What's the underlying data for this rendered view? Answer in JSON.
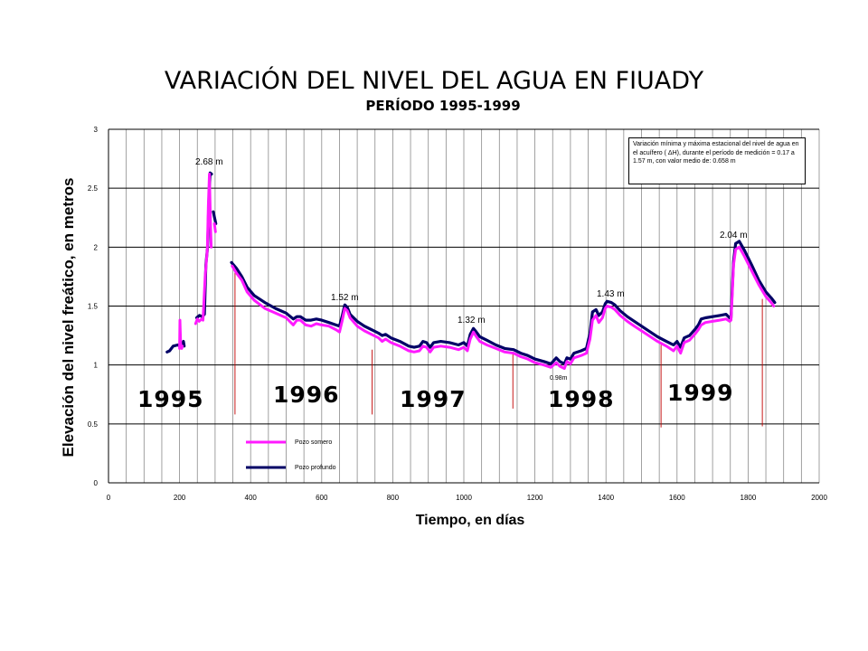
{
  "chart_data": {
    "type": "line",
    "title": "VARIACIÓN DEL NIVEL DEL AGUA EN FIUADY",
    "subtitle": "PERÍODO 1995-1999",
    "xlabel": "Tiempo, en días",
    "ylabel": "Elevación del nivel freático, en metros",
    "xlim": [
      0,
      2000
    ],
    "ylim": [
      0,
      3
    ],
    "xticks": [
      0,
      200,
      400,
      600,
      800,
      1000,
      1200,
      1400,
      1600,
      1800,
      2000
    ],
    "yticks": [
      0,
      0.5,
      1,
      1.5,
      2,
      2.5,
      3
    ],
    "grid": true,
    "legend_position": "bottom-left",
    "series": [
      {
        "name": "Pozo somero",
        "color": "#ff1aff",
        "segments": [
          [
            [
              200,
              1.14
            ],
            [
              201,
              1.38
            ],
            [
              203,
              1.18
            ],
            [
              206,
              1.14
            ],
            [
              208,
              1.16
            ]
          ],
          [
            [
              245,
              1.35
            ],
            [
              250,
              1.39
            ],
            [
              255,
              1.37
            ],
            [
              262,
              1.39
            ],
            [
              266,
              1.38
            ],
            [
              272,
              1.75
            ],
            [
              278,
              1.98
            ],
            [
              281,
              2.35
            ],
            [
              284,
              2.62
            ],
            [
              287,
              2.2
            ],
            [
              289,
              2.0
            ]
          ],
          [
            [
              298,
              2.2
            ],
            [
              301,
              2.13
            ]
          ],
          [
            [
              348,
              1.84
            ],
            [
              360,
              1.78
            ],
            [
              375,
              1.72
            ],
            [
              390,
              1.62
            ],
            [
              410,
              1.55
            ],
            [
              440,
              1.48
            ],
            [
              470,
              1.44
            ],
            [
              500,
              1.4
            ],
            [
              520,
              1.34
            ],
            [
              530,
              1.38
            ],
            [
              540,
              1.38
            ],
            [
              555,
              1.34
            ],
            [
              570,
              1.33
            ],
            [
              585,
              1.35
            ],
            [
              600,
              1.34
            ],
            [
              620,
              1.33
            ],
            [
              640,
              1.3
            ],
            [
              650,
              1.28
            ],
            [
              658,
              1.38
            ],
            [
              665,
              1.48
            ],
            [
              672,
              1.46
            ],
            [
              680,
              1.4
            ],
            [
              700,
              1.33
            ],
            [
              720,
              1.29
            ],
            [
              740,
              1.26
            ],
            [
              760,
              1.23
            ],
            [
              770,
              1.2
            ],
            [
              780,
              1.22
            ],
            [
              795,
              1.19
            ],
            [
              820,
              1.16
            ],
            [
              845,
              1.12
            ],
            [
              860,
              1.11
            ],
            [
              875,
              1.12
            ],
            [
              885,
              1.16
            ],
            [
              895,
              1.15
            ],
            [
              905,
              1.11
            ],
            [
              915,
              1.15
            ],
            [
              935,
              1.16
            ],
            [
              960,
              1.15
            ],
            [
              985,
              1.13
            ],
            [
              1000,
              1.15
            ],
            [
              1010,
              1.12
            ],
            [
              1018,
              1.22
            ],
            [
              1027,
              1.28
            ],
            [
              1035,
              1.24
            ],
            [
              1045,
              1.2
            ],
            [
              1065,
              1.17
            ],
            [
              1090,
              1.14
            ],
            [
              1115,
              1.11
            ],
            [
              1140,
              1.1
            ],
            [
              1160,
              1.07
            ],
            [
              1180,
              1.05
            ],
            [
              1200,
              1.02
            ],
            [
              1225,
              1.0
            ],
            [
              1245,
              0.98
            ],
            [
              1260,
              1.02
            ],
            [
              1270,
              0.99
            ],
            [
              1283,
              0.97
            ],
            [
              1290,
              1.03
            ],
            [
              1300,
              1.01
            ],
            [
              1310,
              1.06
            ],
            [
              1330,
              1.08
            ],
            [
              1345,
              1.1
            ],
            [
              1355,
              1.22
            ],
            [
              1362,
              1.38
            ],
            [
              1372,
              1.42
            ],
            [
              1380,
              1.36
            ],
            [
              1390,
              1.4
            ],
            [
              1398,
              1.48
            ],
            [
              1403,
              1.5
            ],
            [
              1415,
              1.49
            ],
            [
              1425,
              1.47
            ],
            [
              1440,
              1.42
            ],
            [
              1460,
              1.37
            ],
            [
              1480,
              1.33
            ],
            [
              1500,
              1.29
            ],
            [
              1520,
              1.25
            ],
            [
              1545,
              1.2
            ],
            [
              1570,
              1.16
            ],
            [
              1590,
              1.12
            ],
            [
              1600,
              1.16
            ],
            [
              1610,
              1.1
            ],
            [
              1620,
              1.19
            ],
            [
              1635,
              1.21
            ],
            [
              1650,
              1.26
            ],
            [
              1660,
              1.3
            ],
            [
              1668,
              1.34
            ],
            [
              1680,
              1.36
            ],
            [
              1700,
              1.37
            ],
            [
              1720,
              1.38
            ],
            [
              1738,
              1.39
            ],
            [
              1748,
              1.37
            ],
            [
              1752,
              1.38
            ],
            [
              1755,
              1.57
            ],
            [
              1759,
              1.85
            ],
            [
              1765,
              1.98
            ],
            [
              1775,
              2.0
            ],
            [
              1790,
              1.92
            ],
            [
              1810,
              1.8
            ],
            [
              1830,
              1.68
            ],
            [
              1850,
              1.58
            ],
            [
              1865,
              1.53
            ],
            [
              1872,
              1.5
            ]
          ]
        ]
      },
      {
        "name": "Pozo profundo",
        "color": "#000066",
        "segments": [
          [
            [
              165,
              1.11
            ],
            [
              172,
              1.12
            ],
            [
              182,
              1.16
            ],
            [
              195,
              1.17
            ],
            [
              202,
              1.16
            ],
            [
              208,
              1.18
            ],
            [
              211,
              1.2
            ],
            [
              213,
              1.16
            ]
          ],
          [
            [
              248,
              1.4
            ],
            [
              256,
              1.42
            ],
            [
              264,
              1.41
            ],
            [
              270,
              1.43
            ],
            [
              274,
              1.85
            ],
            [
              279,
              2.0
            ],
            [
              283,
              2.45
            ],
            [
              286,
              2.63
            ],
            [
              290,
              2.62
            ]
          ],
          [
            [
              295,
              2.3
            ],
            [
              302,
              2.2
            ]
          ],
          [
            [
              346,
              1.87
            ],
            [
              360,
              1.82
            ],
            [
              375,
              1.75
            ],
            [
              390,
              1.66
            ],
            [
              410,
              1.59
            ],
            [
              440,
              1.53
            ],
            [
              470,
              1.48
            ],
            [
              500,
              1.44
            ],
            [
              520,
              1.39
            ],
            [
              530,
              1.41
            ],
            [
              540,
              1.41
            ],
            [
              555,
              1.38
            ],
            [
              570,
              1.38
            ],
            [
              585,
              1.39
            ],
            [
              600,
              1.38
            ],
            [
              620,
              1.36
            ],
            [
              640,
              1.34
            ],
            [
              650,
              1.33
            ],
            [
              658,
              1.42
            ],
            [
              665,
              1.51
            ],
            [
              672,
              1.49
            ],
            [
              680,
              1.43
            ],
            [
              700,
              1.37
            ],
            [
              720,
              1.33
            ],
            [
              740,
              1.3
            ],
            [
              760,
              1.27
            ],
            [
              770,
              1.25
            ],
            [
              780,
              1.26
            ],
            [
              795,
              1.23
            ],
            [
              820,
              1.2
            ],
            [
              845,
              1.16
            ],
            [
              860,
              1.15
            ],
            [
              875,
              1.16
            ],
            [
              885,
              1.2
            ],
            [
              895,
              1.19
            ],
            [
              905,
              1.15
            ],
            [
              915,
              1.19
            ],
            [
              935,
              1.2
            ],
            [
              960,
              1.19
            ],
            [
              985,
              1.17
            ],
            [
              1000,
              1.19
            ],
            [
              1010,
              1.16
            ],
            [
              1018,
              1.26
            ],
            [
              1027,
              1.31
            ],
            [
              1035,
              1.28
            ],
            [
              1045,
              1.24
            ],
            [
              1065,
              1.21
            ],
            [
              1090,
              1.17
            ],
            [
              1115,
              1.14
            ],
            [
              1140,
              1.13
            ],
            [
              1160,
              1.1
            ],
            [
              1180,
              1.08
            ],
            [
              1200,
              1.05
            ],
            [
              1225,
              1.03
            ],
            [
              1245,
              1.01
            ],
            [
              1260,
              1.06
            ],
            [
              1270,
              1.03
            ],
            [
              1283,
              1.01
            ],
            [
              1290,
              1.06
            ],
            [
              1300,
              1.05
            ],
            [
              1310,
              1.1
            ],
            [
              1330,
              1.12
            ],
            [
              1345,
              1.14
            ],
            [
              1355,
              1.27
            ],
            [
              1362,
              1.45
            ],
            [
              1372,
              1.47
            ],
            [
              1380,
              1.42
            ],
            [
              1390,
              1.45
            ],
            [
              1398,
              1.52
            ],
            [
              1403,
              1.54
            ],
            [
              1415,
              1.53
            ],
            [
              1425,
              1.51
            ],
            [
              1440,
              1.46
            ],
            [
              1460,
              1.41
            ],
            [
              1480,
              1.37
            ],
            [
              1500,
              1.33
            ],
            [
              1520,
              1.29
            ],
            [
              1545,
              1.24
            ],
            [
              1570,
              1.2
            ],
            [
              1590,
              1.17
            ],
            [
              1600,
              1.2
            ],
            [
              1610,
              1.15
            ],
            [
              1620,
              1.23
            ],
            [
              1635,
              1.25
            ],
            [
              1650,
              1.3
            ],
            [
              1660,
              1.34
            ],
            [
              1668,
              1.39
            ],
            [
              1680,
              1.4
            ],
            [
              1700,
              1.41
            ],
            [
              1720,
              1.42
            ],
            [
              1738,
              1.43
            ],
            [
              1748,
              1.4
            ],
            [
              1752,
              1.4
            ],
            [
              1755,
              1.62
            ],
            [
              1759,
              1.88
            ],
            [
              1765,
              2.03
            ],
            [
              1775,
              2.05
            ],
            [
              1790,
              1.97
            ],
            [
              1810,
              1.85
            ],
            [
              1830,
              1.72
            ],
            [
              1850,
              1.62
            ],
            [
              1865,
              1.57
            ],
            [
              1875,
              1.53
            ]
          ]
        ]
      }
    ],
    "year_separators": [
      {
        "x": 356,
        "y_from": 0.58,
        "y_to": 1.8
      },
      {
        "x": 742,
        "y_from": 0.58,
        "y_to": 1.13
      },
      {
        "x": 1138,
        "y_from": 0.63,
        "y_to": 1.1
      },
      {
        "x": 1555,
        "y_from": 0.47,
        "y_to": 1.17
      },
      {
        "x": 1840,
        "y_from": 0.48,
        "y_to": 1.56
      }
    ],
    "year_labels": [
      "1995",
      "1996",
      "1997",
      "1998",
      "1999"
    ],
    "peak_labels": [
      "2.68 m",
      "1.52 m",
      "1.32 m",
      "1.43 m",
      "2.04 m",
      "0.98m"
    ],
    "annotation": "Variación mínima y máxima estacional del nivel de agua en el acuífero ( ΔH), durante el período de medición = 0.17 a 1.57 m, con valor medio de: 0.658 m"
  }
}
